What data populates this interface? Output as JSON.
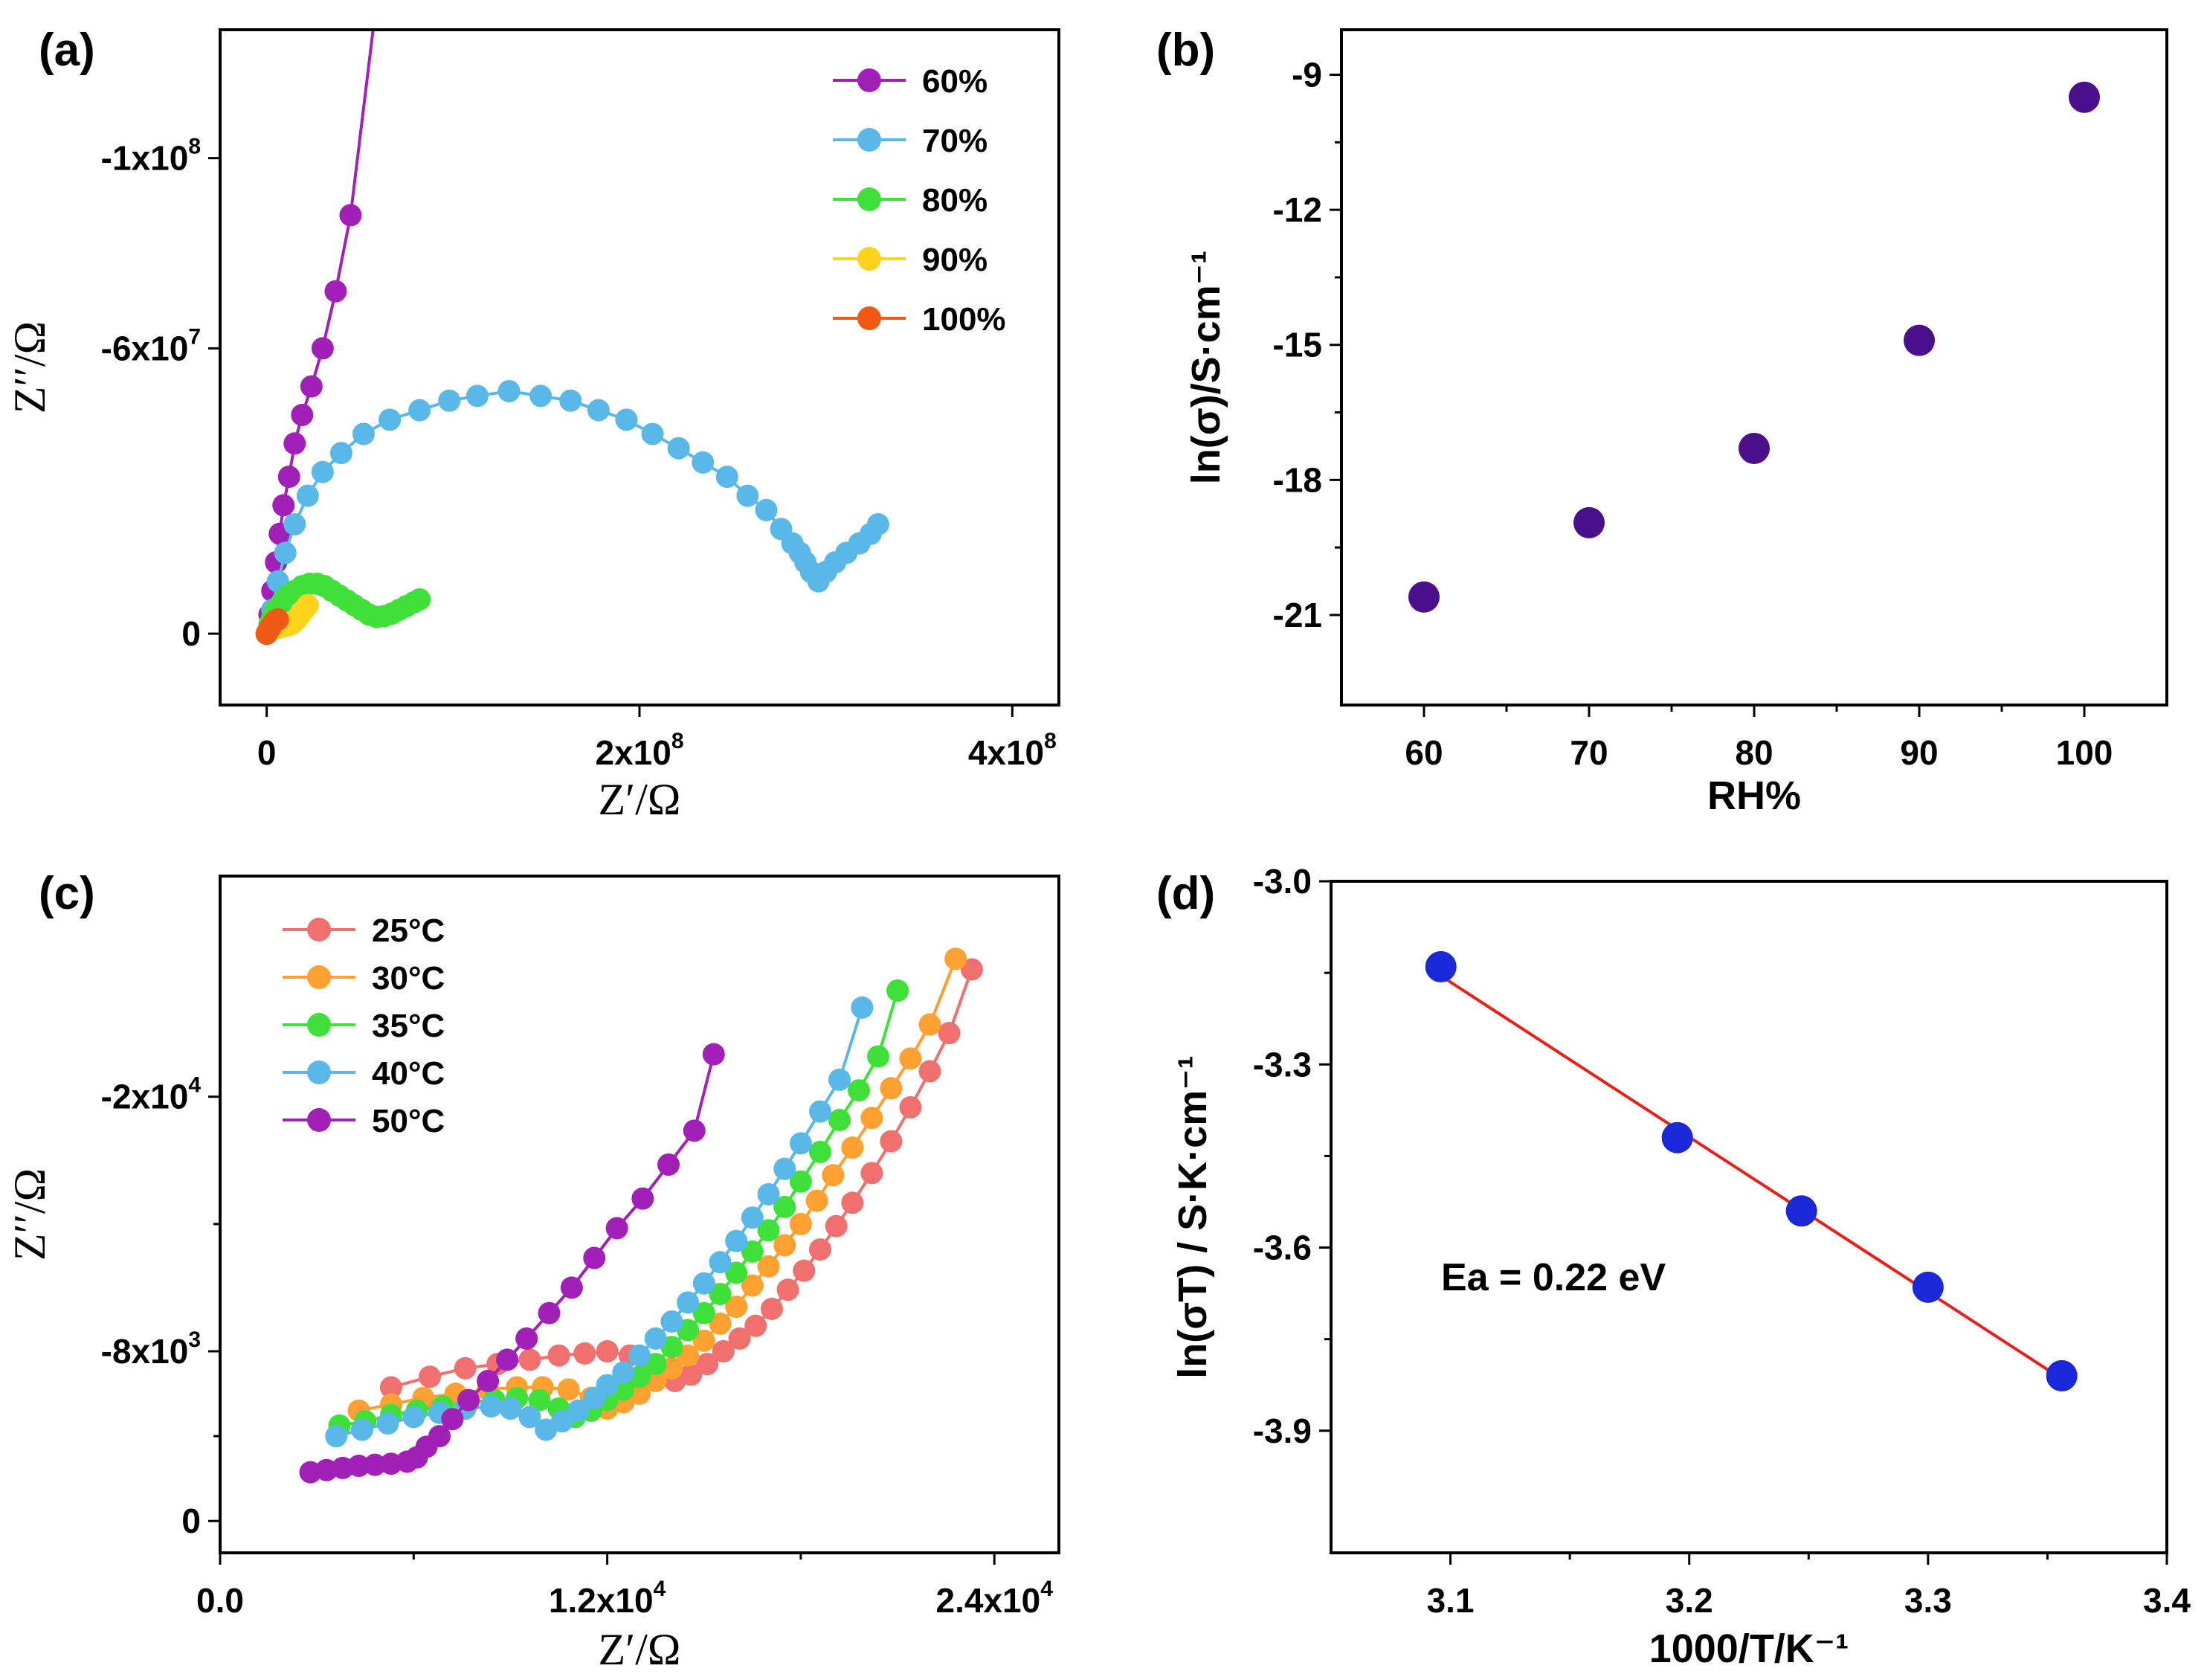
{
  "chart_data": [
    {
      "id": "a",
      "panel_label": "(a)",
      "type": "line",
      "xlabel": "Z′/Ω",
      "ylabel": "Z′′/Ω",
      "xlim": [
        -25000000,
        425000000
      ],
      "ylim": [
        15000000,
        -127000000
      ],
      "xticks": [
        {
          "v": 0,
          "base": "0",
          "exp": ""
        },
        {
          "v": 200000000,
          "base": "2x10",
          "exp": "8"
        },
        {
          "v": 400000000,
          "base": "4x10",
          "exp": "8"
        }
      ],
      "yticks": [
        {
          "v": -100000000,
          "base": "-1x10",
          "exp": "8"
        },
        {
          "v": -60000000,
          "base": "-6x10",
          "exp": "7"
        },
        {
          "v": 0,
          "base": "0",
          "exp": ""
        }
      ],
      "legend_position": "top-right",
      "series": [
        {
          "name": "60%",
          "color": "#a020b8",
          "marker": true,
          "line_extends": [
            58000000,
            -130000000
          ],
          "x": [
            0,
            1500000,
            3000000,
            5000000,
            7000000,
            9000000,
            12000000,
            15000000,
            19000000,
            24000000,
            30000000,
            37000000,
            45000000
          ],
          "y": [
            0,
            -4000000,
            -9000000,
            -15000000,
            -21000000,
            -27000000,
            -33000000,
            -40000000,
            -46000000,
            -52000000,
            -60000000,
            -72000000,
            -88000000
          ]
        },
        {
          "name": "70%",
          "color": "#5ab8e8",
          "marker": true,
          "x": [
            0,
            3000000,
            6000000,
            10000000,
            15000000,
            22000000,
            30000000,
            40000000,
            52000000,
            66000000,
            82000000,
            98000000,
            113000000,
            130000000,
            147000000,
            163000000,
            178000000,
            193000000,
            207000000,
            221000000,
            234000000,
            247000000,
            258000000,
            268000000,
            276000000,
            282000000,
            286000000,
            289000000,
            292000000,
            296000000,
            300000000,
            305000000,
            311000000,
            318000000,
            324000000,
            328000000
          ],
          "y": [
            0,
            -5000000,
            -11000000,
            -17000000,
            -23000000,
            -29000000,
            -34000000,
            -38000000,
            -42000000,
            -45000000,
            -47000000,
            -49000000,
            -50000000,
            -51000000,
            -50000000,
            -49000000,
            -47000000,
            -45000000,
            -42000000,
            -39000000,
            -36000000,
            -33000000,
            -29000000,
            -26000000,
            -22000000,
            -19000000,
            -17000000,
            -15000000,
            -13000000,
            -11000000,
            -13000000,
            -15000000,
            -17000000,
            -19000000,
            -21000000,
            -23000000
          ]
        },
        {
          "name": "80%",
          "color": "#3fe03a",
          "marker": true,
          "x": [
            0,
            1500000,
            3000000,
            5000000,
            8000000,
            11000000,
            15000000,
            19000000,
            23000000,
            27000000,
            31000000,
            35000000,
            39000000,
            43000000,
            47000000,
            51000000,
            55000000,
            59000000,
            63000000,
            67000000,
            71000000,
            75000000,
            79000000,
            82000000
          ],
          "y": [
            0,
            -2000000,
            -3500000,
            -5000000,
            -6500000,
            -8000000,
            -9000000,
            -10000000,
            -10500000,
            -10500000,
            -10000000,
            -9000000,
            -8000000,
            -7000000,
            -6000000,
            -5000000,
            -4000000,
            -3500000,
            -3700000,
            -4200000,
            -5000000,
            -5800000,
            -6600000,
            -7200000
          ]
        },
        {
          "name": "90%",
          "color": "#ffd21e",
          "marker": true,
          "x": [
            0,
            2000000,
            4000000,
            6000000,
            8000000,
            10000000,
            12000000,
            14000000,
            16000000,
            18000000,
            20000000,
            22000000
          ],
          "y": [
            0,
            -800000,
            -1200000,
            -1200000,
            -1500000,
            -1600000,
            -1800000,
            -2200000,
            -3000000,
            -4000000,
            -5000000,
            -6000000
          ]
        },
        {
          "name": "100%",
          "color": "#f05a14",
          "marker": true,
          "x": [
            0,
            1000000,
            2000000,
            3000000,
            4000000,
            5000000,
            6000000
          ],
          "y": [
            0,
            -700000,
            -1400000,
            -2000000,
            -2500000,
            -2800000,
            -3000000
          ]
        }
      ]
    },
    {
      "id": "b",
      "panel_label": "(b)",
      "type": "scatter",
      "xlabel": "RH%",
      "ylabel": "ln(σ)/S·cm⁻¹",
      "xlim": [
        55,
        105
      ],
      "ylim": [
        -23,
        -8
      ],
      "xticks": [
        {
          "v": 60,
          "base": "60",
          "exp": ""
        },
        {
          "v": 70,
          "base": "70",
          "exp": ""
        },
        {
          "v": 80,
          "base": "80",
          "exp": ""
        },
        {
          "v": 90,
          "base": "90",
          "exp": ""
        },
        {
          "v": 100,
          "base": "100",
          "exp": ""
        }
      ],
      "yticks": [
        {
          "v": -9,
          "base": "-9",
          "exp": ""
        },
        {
          "v": -12,
          "base": "-12",
          "exp": ""
        },
        {
          "v": -15,
          "base": "-15",
          "exp": ""
        },
        {
          "v": -18,
          "base": "-18",
          "exp": ""
        },
        {
          "v": -21,
          "base": "-21",
          "exp": ""
        }
      ],
      "series": [
        {
          "name": "ln(σ)",
          "color": "#4b0f8c",
          "x": [
            60,
            70,
            80,
            90,
            100
          ],
          "y": [
            -20.6,
            -18.95,
            -17.3,
            -14.9,
            -9.5
          ]
        }
      ]
    },
    {
      "id": "c",
      "panel_label": "(c)",
      "type": "line",
      "xlabel": "Z′/Ω",
      "ylabel": "Z′′/Ω",
      "xlim": [
        0,
        26000
      ],
      "ylim": [
        1500,
        -30400
      ],
      "xticks": [
        {
          "v": 0,
          "base": "0.0",
          "exp": ""
        },
        {
          "v": 12000,
          "base": "1.2x10",
          "exp": "4"
        },
        {
          "v": 24000,
          "base": "2.4x10",
          "exp": "4"
        }
      ],
      "yticks": [
        {
          "v": -20000,
          "base": "-2x10",
          "exp": "4"
        },
        {
          "v": -8000,
          "base": "-8x10",
          "exp": "3"
        },
        {
          "v": 0,
          "base": "0",
          "exp": ""
        }
      ],
      "legend_position": "top-left",
      "series": [
        {
          "name": "25°C",
          "color": "#f07070",
          "x": [
            5300,
            6500,
            7600,
            8600,
            9600,
            10500,
            11300,
            12000,
            12700,
            13400,
            14100,
            14600,
            15100,
            15600,
            16100,
            16600,
            17100,
            17600,
            18100,
            18600,
            19100,
            19600,
            20200,
            20800,
            21400,
            22000,
            22600,
            23300
          ],
          "y": [
            -6300,
            -6800,
            -7200,
            -7400,
            -7600,
            -7800,
            -7900,
            -8000,
            -7800,
            -7300,
            -6600,
            -6900,
            -7400,
            -8000,
            -8600,
            -9200,
            -10000,
            -10900,
            -11800,
            -12800,
            -13900,
            -15000,
            -16400,
            -17900,
            -19500,
            -21200,
            -23000,
            -26000
          ]
        },
        {
          "name": "30°C",
          "color": "#ffa032",
          "x": [
            4300,
            5300,
            6300,
            7300,
            8300,
            9200,
            10000,
            10800,
            11500,
            12000,
            12500,
            13000,
            13500,
            14000,
            14500,
            15000,
            15500,
            16000,
            16500,
            17000,
            17500,
            18000,
            18500,
            19000,
            19600,
            20200,
            20800,
            21400,
            22000,
            22800
          ],
          "y": [
            -5200,
            -5500,
            -5800,
            -6000,
            -6200,
            -6300,
            -6300,
            -6200,
            -5800,
            -5300,
            -5600,
            -6000,
            -6600,
            -7200,
            -7800,
            -8500,
            -9300,
            -10100,
            -11100,
            -12000,
            -13000,
            -14000,
            -15100,
            -16300,
            -17600,
            -19000,
            -20400,
            -21800,
            -23400,
            -26500
          ]
        },
        {
          "name": "35°C",
          "color": "#3fe03a",
          "x": [
            3700,
            4500,
            5300,
            6100,
            6900,
            7700,
            8500,
            9200,
            9900,
            10500,
            11000,
            11500,
            12000,
            12500,
            13000,
            13500,
            14000,
            14500,
            15000,
            15500,
            16000,
            16500,
            17000,
            17500,
            18000,
            18600,
            19200,
            19800,
            20400,
            21000
          ],
          "y": [
            -4500,
            -4700,
            -5000,
            -5200,
            -5400,
            -5600,
            -5700,
            -5800,
            -5700,
            -5300,
            -4900,
            -5200,
            -5700,
            -6200,
            -6800,
            -7400,
            -8200,
            -9000,
            -9800,
            -10700,
            -11700,
            -12700,
            -13700,
            -14800,
            -16000,
            -17400,
            -18900,
            -20300,
            -21900,
            -25000
          ]
        },
        {
          "name": "40°C",
          "color": "#5ab8e8",
          "x": [
            3600,
            4400,
            5200,
            6000,
            6800,
            7600,
            8400,
            9000,
            9600,
            10100,
            10600,
            11100,
            11600,
            12000,
            12500,
            13000,
            13500,
            14000,
            14500,
            15000,
            15500,
            16000,
            16500,
            17000,
            17500,
            18000,
            18600,
            19200,
            19900
          ],
          "y": [
            -4000,
            -4300,
            -4600,
            -4900,
            -5100,
            -5300,
            -5400,
            -5300,
            -4900,
            -4300,
            -4700,
            -5200,
            -5800,
            -6400,
            -7000,
            -7800,
            -8600,
            -9400,
            -10300,
            -11200,
            -12200,
            -13200,
            -14300,
            -15400,
            -16600,
            -17800,
            -19300,
            -20800,
            -24200
          ]
        },
        {
          "name": "50°C",
          "color": "#a020b8",
          "x": [
            2800,
            3300,
            3800,
            4300,
            4800,
            5300,
            5800,
            6100,
            6400,
            6800,
            7200,
            7700,
            8300,
            8900,
            9500,
            10200,
            10900,
            11600,
            12300,
            13100,
            13900,
            14700,
            15300
          ],
          "y": [
            -2300,
            -2400,
            -2500,
            -2600,
            -2650,
            -2700,
            -2800,
            -3000,
            -3500,
            -4000,
            -4800,
            -5700,
            -6600,
            -7600,
            -8600,
            -9800,
            -11000,
            -12400,
            -13800,
            -15200,
            -16800,
            -18400,
            -22000
          ]
        }
      ]
    },
    {
      "id": "d",
      "panel_label": "(d)",
      "type": "scatter",
      "xlabel": "1000/T/K⁻¹",
      "ylabel": "ln(σT) / S·K·cm⁻¹",
      "xlim": [
        3.05,
        3.4
      ],
      "ylim": [
        -4.1,
        -3.0
      ],
      "xticks": [
        {
          "v": 3.1,
          "base": "3.1",
          "exp": ""
        },
        {
          "v": 3.2,
          "base": "3.2",
          "exp": ""
        },
        {
          "v": 3.3,
          "base": "3.3",
          "exp": ""
        },
        {
          "v": 3.4,
          "base": "3.4",
          "exp": ""
        }
      ],
      "yticks": [
        {
          "v": -3.0,
          "base": "-3.0",
          "exp": ""
        },
        {
          "v": -3.3,
          "base": "-3.3",
          "exp": ""
        },
        {
          "v": -3.6,
          "base": "-3.6",
          "exp": ""
        },
        {
          "v": -3.9,
          "base": "-3.9",
          "exp": ""
        }
      ],
      "annotation": "Ea = 0.22 eV",
      "fit": {
        "x": [
          3.096,
          3.356
        ],
        "y": [
          -3.155,
          -3.815
        ],
        "color": "#e8201a"
      },
      "series": [
        {
          "name": "ln(σT)",
          "color": "#1a28d8",
          "x": [
            3.096,
            3.195,
            3.247,
            3.3,
            3.356
          ],
          "y": [
            -3.14,
            -3.42,
            -3.54,
            -3.665,
            -3.81
          ]
        }
      ]
    }
  ]
}
